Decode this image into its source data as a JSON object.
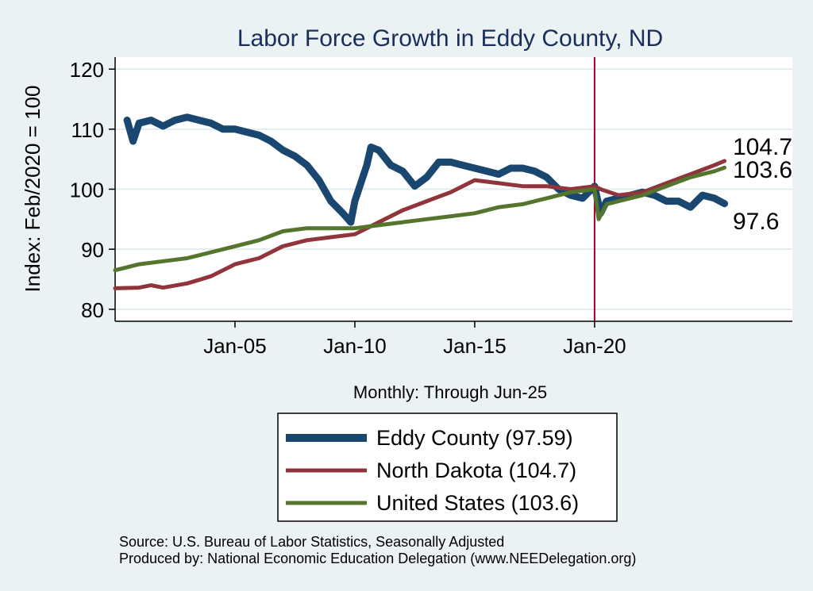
{
  "chart_data": {
    "type": "line",
    "title": "Labor Force Growth in Eddy  County, ND",
    "xlabel": "Monthly: Through Jun-25",
    "ylabel": "Index: Feb/2020 = 100",
    "ylim": [
      78,
      122
    ],
    "yticks": [
      80,
      90,
      100,
      110,
      120
    ],
    "xlim": [
      2000.0,
      2028.25
    ],
    "xticks": [
      {
        "value": 2005.0,
        "label": "Jan-05"
      },
      {
        "value": 2010.0,
        "label": "Jan-10"
      },
      {
        "value": 2015.0,
        "label": "Jan-15"
      },
      {
        "value": 2020.0,
        "label": "Jan-20"
      }
    ],
    "reference_line": {
      "x": 2020.0,
      "color": "#990033"
    },
    "grid": true,
    "legend_position": "bottom",
    "series": [
      {
        "name": "Eddy  County",
        "legend_label": "Eddy  County (97.59)",
        "end_label": "97.6",
        "color": "#1a476f",
        "x": [
          2000.5,
          2000.75,
          2001.0,
          2001.5,
          2002.0,
          2002.5,
          2003.0,
          2003.5,
          2004.0,
          2004.5,
          2005.0,
          2005.5,
          2006.0,
          2006.5,
          2007.0,
          2007.5,
          2008.0,
          2008.5,
          2009.0,
          2009.5,
          2009.83,
          2010.0,
          2010.5,
          2010.67,
          2011.0,
          2011.5,
          2012.0,
          2012.5,
          2013.0,
          2013.5,
          2014.0,
          2014.5,
          2015.0,
          2015.5,
          2016.0,
          2016.5,
          2017.0,
          2017.5,
          2018.0,
          2018.5,
          2019.0,
          2019.5,
          2020.0,
          2020.25,
          2020.5,
          2021.0,
          2021.5,
          2022.0,
          2022.5,
          2023.0,
          2023.5,
          2024.0,
          2024.5,
          2025.0,
          2025.42
        ],
        "values": [
          111.5,
          108.0,
          111.0,
          111.5,
          110.5,
          111.5,
          112.0,
          111.5,
          111.0,
          110.0,
          110.0,
          109.5,
          109.0,
          108.0,
          106.5,
          105.5,
          104.0,
          101.5,
          98.0,
          96.0,
          94.5,
          98.0,
          104.0,
          107.0,
          106.5,
          104.0,
          103.0,
          100.5,
          102.0,
          104.5,
          104.5,
          104.0,
          103.5,
          103.0,
          102.5,
          103.5,
          103.5,
          103.0,
          102.0,
          100.0,
          99.0,
          98.5,
          100.5,
          96.0,
          98.0,
          98.5,
          99.0,
          99.5,
          99.0,
          98.0,
          98.0,
          97.0,
          99.0,
          98.5,
          97.6
        ]
      },
      {
        "name": "North Dakota",
        "legend_label": "North Dakota (104.7)",
        "end_label": "104.7",
        "color": "#90353b",
        "x": [
          2000.0,
          2001.0,
          2001.5,
          2002.0,
          2003.0,
          2004.0,
          2005.0,
          2006.0,
          2007.0,
          2008.0,
          2009.0,
          2010.0,
          2011.0,
          2012.0,
          2013.0,
          2014.0,
          2015.0,
          2016.0,
          2017.0,
          2018.0,
          2019.0,
          2020.0,
          2020.25,
          2021.0,
          2022.0,
          2023.0,
          2024.0,
          2025.0,
          2025.42
        ],
        "values": [
          83.5,
          83.6,
          84.0,
          83.6,
          84.3,
          85.5,
          87.5,
          88.5,
          90.5,
          91.5,
          92.0,
          92.5,
          94.5,
          96.5,
          98.0,
          99.5,
          101.5,
          101.0,
          100.5,
          100.5,
          100.0,
          100.5,
          100.0,
          99.0,
          99.5,
          101.0,
          102.5,
          104.0,
          104.7
        ]
      },
      {
        "name": "United States",
        "legend_label": "United States (103.6)",
        "end_label": "103.6",
        "color": "#55752f",
        "x": [
          2000.0,
          2001.0,
          2002.0,
          2003.0,
          2004.0,
          2005.0,
          2006.0,
          2007.0,
          2008.0,
          2009.0,
          2010.0,
          2011.0,
          2012.0,
          2013.0,
          2014.0,
          2015.0,
          2016.0,
          2017.0,
          2018.0,
          2019.0,
          2020.0,
          2020.17,
          2020.5,
          2021.0,
          2022.0,
          2023.0,
          2024.0,
          2025.0,
          2025.42
        ],
        "values": [
          86.5,
          87.5,
          88.0,
          88.5,
          89.5,
          90.5,
          91.5,
          93.0,
          93.5,
          93.5,
          93.5,
          94.0,
          94.5,
          95.0,
          95.5,
          96.0,
          97.0,
          97.5,
          98.5,
          99.5,
          100.0,
          95.0,
          97.5,
          98.0,
          99.0,
          100.5,
          102.0,
          103.0,
          103.6
        ]
      }
    ]
  },
  "notes": {
    "source": "Source: U.S. Bureau of Labor Statistics, Seasonally Adjusted",
    "produced_by": "Produced by: National Economic Education Delegation (www.NEEDelegation.org)"
  }
}
